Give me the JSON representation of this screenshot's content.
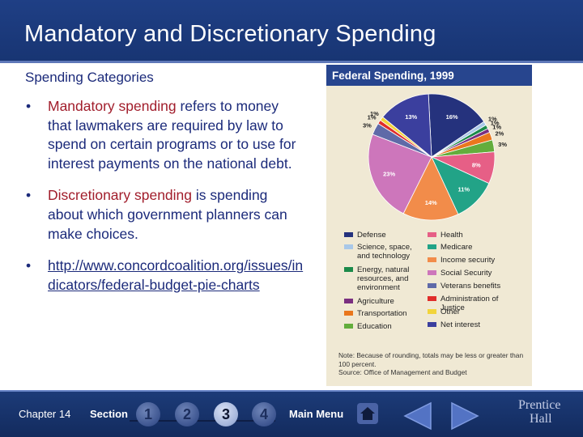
{
  "slide": {
    "title": "Mandatory and Discretionary Spending",
    "subtitle": "Spending Categories"
  },
  "bullets": [
    {
      "term": "Mandatory spending",
      "rest": " refers to money that lawmakers are required by law to spend on certain programs or to use for interest payments on the national debt."
    },
    {
      "term": "Discretionary spending",
      "rest": " is spending about which government planners can make choices."
    },
    {
      "link": "http://www.concordcoalition.org/issues/indicators/federal-budget-pie-charts"
    }
  ],
  "chart_data": {
    "type": "pie",
    "title": "Federal Spending, 1999",
    "slices": [
      {
        "label": "Defense",
        "value": 16,
        "color": "#25327d"
      },
      {
        "label": "Science, space, and technology",
        "value": 1,
        "color": "#a9c8e8"
      },
      {
        "label": "Energy, natural resources, and environment",
        "value": 1,
        "color": "#1b8a4a"
      },
      {
        "label": "Agriculture",
        "value": 1,
        "color": "#7a2f80"
      },
      {
        "label": "Transportation",
        "value": 2,
        "color": "#e9771d"
      },
      {
        "label": "Education",
        "value": 3,
        "color": "#63ad3c"
      },
      {
        "label": "Health",
        "value": 8,
        "color": "#e65f86"
      },
      {
        "label": "Medicare",
        "value": 11,
        "color": "#22a387"
      },
      {
        "label": "Income security",
        "value": 14,
        "color": "#f28c4a"
      },
      {
        "label": "Social Security",
        "value": 23,
        "color": "#cd76bb"
      },
      {
        "label": "Veterans benefits",
        "value": 3,
        "color": "#5f6aa8"
      },
      {
        "label": "Administration of Justice",
        "value": 1,
        "color": "#e02d2a"
      },
      {
        "label": "Other",
        "value": 1,
        "color": "#f2d43b"
      },
      {
        "label": "Net interest",
        "value": 13,
        "color": "#3b3f9e"
      }
    ],
    "data_labels": [
      "1%",
      "2%",
      "3%",
      "13%",
      "16%",
      "1%",
      "1%",
      "1%",
      "2%",
      "3%",
      "8%",
      "11%",
      "14%",
      "23%"
    ],
    "legend_left": [
      "Defense",
      "Science, space, and technology",
      "Energy, natural resources, and environment",
      "Agriculture",
      "Transportation",
      "Education"
    ],
    "legend_right": [
      "Health",
      "Medicare",
      "Income security",
      "Social Security",
      "Veterans benefits",
      "Administration of Justice",
      "Other",
      "Net interest"
    ],
    "note": "Note: Because of rounding, totals may be less or greater than 100 percent.",
    "source": "Source: Office of Management and Budget"
  },
  "footer": {
    "chapter": "Chapter 14",
    "section": "Section",
    "sections": [
      "1",
      "2",
      "3",
      "4"
    ],
    "active_section": "3",
    "main_menu": "Main Menu",
    "publisher_line1": "Prentice",
    "publisher_line2": "Hall",
    "icons": [
      "home-icon",
      "back-arrow-icon",
      "forward-arrow-icon"
    ]
  }
}
